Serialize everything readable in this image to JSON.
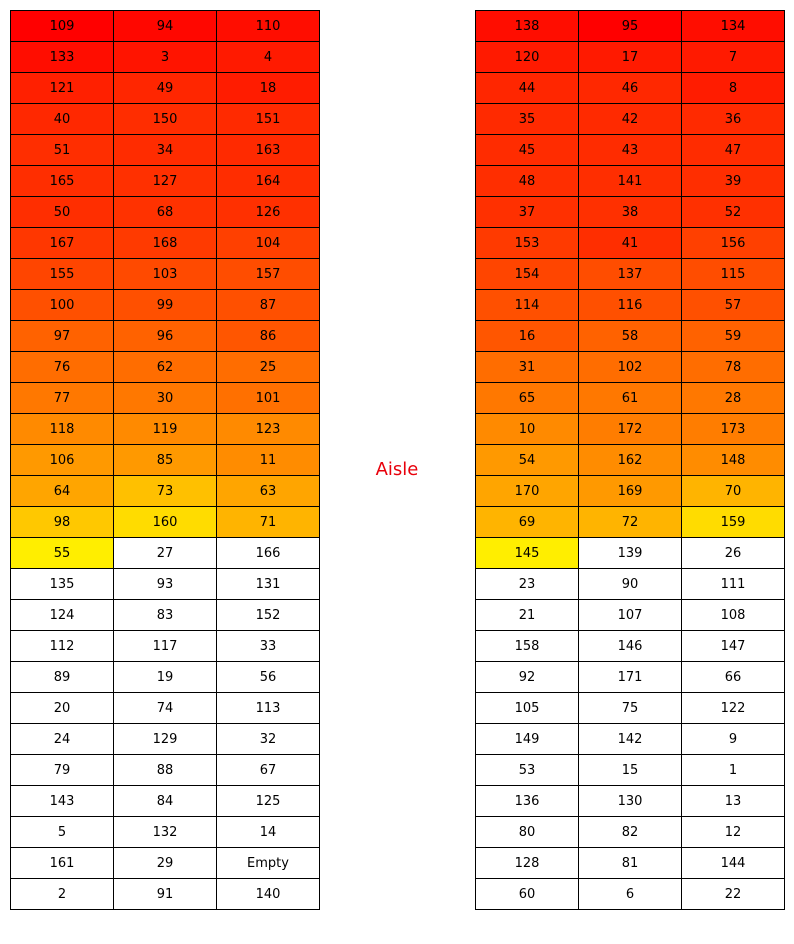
{
  "aisle_label": "Aisle",
  "colors": {
    "red": "#ff0000",
    "red_orange": "#ff2600",
    "orange_red": "#ff4500",
    "orange": "#ff6a00",
    "amber": "#ff8c00",
    "gold": "#ffb300",
    "yellow_gold": "#ffd900",
    "yellow": "#ffee00",
    "empty": "#ffffff",
    "aisle_text": "#e8000b"
  },
  "left_block": {
    "rows": [
      [
        {
          "v": "109",
          "c": "#ff0000"
        },
        {
          "v": "94",
          "c": "#ff0700"
        },
        {
          "v": "110",
          "c": "#ff0d00"
        }
      ],
      [
        {
          "v": "133",
          "c": "#ff0d00"
        },
        {
          "v": "3",
          "c": "#ff1400"
        },
        {
          "v": "4",
          "c": "#ff1a00"
        }
      ],
      [
        {
          "v": "121",
          "c": "#ff2000"
        },
        {
          "v": "49",
          "c": "#ff2600"
        },
        {
          "v": "18",
          "c": "#ff1c00"
        }
      ],
      [
        {
          "v": "40",
          "c": "#ff2800"
        },
        {
          "v": "150",
          "c": "#ff2d00"
        },
        {
          "v": "151",
          "c": "#ff2a00"
        }
      ],
      [
        {
          "v": "51",
          "c": "#ff2e00"
        },
        {
          "v": "34",
          "c": "#ff2c00"
        },
        {
          "v": "163",
          "c": "#ff2a00"
        }
      ],
      [
        {
          "v": "165",
          "c": "#ff2e00"
        },
        {
          "v": "127",
          "c": "#ff3000"
        },
        {
          "v": "164",
          "c": "#ff2d00"
        }
      ],
      [
        {
          "v": "50",
          "c": "#ff2e00"
        },
        {
          "v": "68",
          "c": "#ff3200"
        },
        {
          "v": "126",
          "c": "#ff3000"
        }
      ],
      [
        {
          "v": "167",
          "c": "#ff3700"
        },
        {
          "v": "168",
          "c": "#ff3a00"
        },
        {
          "v": "104",
          "c": "#ff4000"
        }
      ],
      [
        {
          "v": "155",
          "c": "#ff4500"
        },
        {
          "v": "103",
          "c": "#ff4a00"
        },
        {
          "v": "157",
          "c": "#ff4d00"
        }
      ],
      [
        {
          "v": "100",
          "c": "#ff5000"
        },
        {
          "v": "99",
          "c": "#ff5000"
        },
        {
          "v": "87",
          "c": "#ff5000"
        }
      ],
      [
        {
          "v": "97",
          "c": "#ff6200"
        },
        {
          "v": "96",
          "c": "#ff6200"
        },
        {
          "v": "86",
          "c": "#ff5600"
        }
      ],
      [
        {
          "v": "76",
          "c": "#ff6d00"
        },
        {
          "v": "62",
          "c": "#ff6d00"
        },
        {
          "v": "25",
          "c": "#ff6d00"
        }
      ],
      [
        {
          "v": "77",
          "c": "#ff7800"
        },
        {
          "v": "30",
          "c": "#ff7800"
        },
        {
          "v": "101",
          "c": "#ff7000"
        }
      ],
      [
        {
          "v": "118",
          "c": "#ff8a00"
        },
        {
          "v": "119",
          "c": "#ff8a00"
        },
        {
          "v": "123",
          "c": "#ff8a00"
        }
      ],
      [
        {
          "v": "106",
          "c": "#ff9900"
        },
        {
          "v": "85",
          "c": "#ff9900"
        },
        {
          "v": "11",
          "c": "#ff8c00"
        }
      ],
      [
        {
          "v": "64",
          "c": "#ffa500"
        },
        {
          "v": "73",
          "c": "#ffc000"
        },
        {
          "v": "63",
          "c": "#ffa500"
        }
      ],
      [
        {
          "v": "98",
          "c": "#ffc800"
        },
        {
          "v": "160",
          "c": "#ffdc00"
        },
        {
          "v": "71",
          "c": "#ffb400"
        }
      ],
      [
        {
          "v": "55",
          "c": "#ffee00"
        },
        {
          "v": "27",
          "c": "#ffffff"
        },
        {
          "v": "166",
          "c": "#ffffff"
        }
      ],
      [
        {
          "v": "135",
          "c": "#ffffff"
        },
        {
          "v": "93",
          "c": "#ffffff"
        },
        {
          "v": "131",
          "c": "#ffffff"
        }
      ],
      [
        {
          "v": "124",
          "c": "#ffffff"
        },
        {
          "v": "83",
          "c": "#ffffff"
        },
        {
          "v": "152",
          "c": "#ffffff"
        }
      ],
      [
        {
          "v": "112",
          "c": "#ffffff"
        },
        {
          "v": "117",
          "c": "#ffffff"
        },
        {
          "v": "33",
          "c": "#ffffff"
        }
      ],
      [
        {
          "v": "89",
          "c": "#ffffff"
        },
        {
          "v": "19",
          "c": "#ffffff"
        },
        {
          "v": "56",
          "c": "#ffffff"
        }
      ],
      [
        {
          "v": "20",
          "c": "#ffffff"
        },
        {
          "v": "74",
          "c": "#ffffff"
        },
        {
          "v": "113",
          "c": "#ffffff"
        }
      ],
      [
        {
          "v": "24",
          "c": "#ffffff"
        },
        {
          "v": "129",
          "c": "#ffffff"
        },
        {
          "v": "32",
          "c": "#ffffff"
        }
      ],
      [
        {
          "v": "79",
          "c": "#ffffff"
        },
        {
          "v": "88",
          "c": "#ffffff"
        },
        {
          "v": "67",
          "c": "#ffffff"
        }
      ],
      [
        {
          "v": "143",
          "c": "#ffffff"
        },
        {
          "v": "84",
          "c": "#ffffff"
        },
        {
          "v": "125",
          "c": "#ffffff"
        }
      ],
      [
        {
          "v": "5",
          "c": "#ffffff"
        },
        {
          "v": "132",
          "c": "#ffffff"
        },
        {
          "v": "14",
          "c": "#ffffff"
        }
      ],
      [
        {
          "v": "161",
          "c": "#ffffff"
        },
        {
          "v": "29",
          "c": "#ffffff"
        },
        {
          "v": "Empty",
          "c": "#ffffff"
        }
      ],
      [
        {
          "v": "2",
          "c": "#ffffff"
        },
        {
          "v": "91",
          "c": "#ffffff"
        },
        {
          "v": "140",
          "c": "#ffffff"
        }
      ]
    ]
  },
  "right_block": {
    "rows": [
      [
        {
          "v": "138",
          "c": "#ff0d00"
        },
        {
          "v": "95",
          "c": "#ff0000"
        },
        {
          "v": "134",
          "c": "#ff0d00"
        }
      ],
      [
        {
          "v": "120",
          "c": "#ff1a00"
        },
        {
          "v": "17",
          "c": "#ff1a00"
        },
        {
          "v": "7",
          "c": "#ff1a00"
        }
      ],
      [
        {
          "v": "44",
          "c": "#ff2600"
        },
        {
          "v": "46",
          "c": "#ff2800"
        },
        {
          "v": "8",
          "c": "#ff1c00"
        }
      ],
      [
        {
          "v": "35",
          "c": "#ff2a00"
        },
        {
          "v": "42",
          "c": "#ff2a00"
        },
        {
          "v": "36",
          "c": "#ff2a00"
        }
      ],
      [
        {
          "v": "45",
          "c": "#ff2c00"
        },
        {
          "v": "43",
          "c": "#ff2c00"
        },
        {
          "v": "47",
          "c": "#ff2c00"
        }
      ],
      [
        {
          "v": "48",
          "c": "#ff2e00"
        },
        {
          "v": "141",
          "c": "#ff2e00"
        },
        {
          "v": "39",
          "c": "#ff2e00"
        }
      ],
      [
        {
          "v": "37",
          "c": "#ff3000"
        },
        {
          "v": "38",
          "c": "#ff3000"
        },
        {
          "v": "52",
          "c": "#ff3000"
        }
      ],
      [
        {
          "v": "153",
          "c": "#ff3a00"
        },
        {
          "v": "41",
          "c": "#ff2e00"
        },
        {
          "v": "156",
          "c": "#ff4000"
        }
      ],
      [
        {
          "v": "154",
          "c": "#ff4500"
        },
        {
          "v": "137",
          "c": "#ff4d00"
        },
        {
          "v": "115",
          "c": "#ff4d00"
        }
      ],
      [
        {
          "v": "114",
          "c": "#ff5000"
        },
        {
          "v": "116",
          "c": "#ff5000"
        },
        {
          "v": "57",
          "c": "#ff5000"
        }
      ],
      [
        {
          "v": "16",
          "c": "#ff5600"
        },
        {
          "v": "58",
          "c": "#ff6200"
        },
        {
          "v": "59",
          "c": "#ff6200"
        }
      ],
      [
        {
          "v": "31",
          "c": "#ff6d00"
        },
        {
          "v": "102",
          "c": "#ff6d00"
        },
        {
          "v": "78",
          "c": "#ff6d00"
        }
      ],
      [
        {
          "v": "65",
          "c": "#ff7800"
        },
        {
          "v": "61",
          "c": "#ff7800"
        },
        {
          "v": "28",
          "c": "#ff7800"
        }
      ],
      [
        {
          "v": "10",
          "c": "#ff8a00"
        },
        {
          "v": "172",
          "c": "#ff7d00"
        },
        {
          "v": "173",
          "c": "#ff7d00"
        }
      ],
      [
        {
          "v": "54",
          "c": "#ff9900"
        },
        {
          "v": "162",
          "c": "#ff8c00"
        },
        {
          "v": "148",
          "c": "#ff8c00"
        }
      ],
      [
        {
          "v": "170",
          "c": "#ffa500"
        },
        {
          "v": "169",
          "c": "#ff9900"
        },
        {
          "v": "70",
          "c": "#ffb400"
        }
      ],
      [
        {
          "v": "69",
          "c": "#ffb400"
        },
        {
          "v": "72",
          "c": "#ffb400"
        },
        {
          "v": "159",
          "c": "#ffdc00"
        }
      ],
      [
        {
          "v": "145",
          "c": "#ffee00"
        },
        {
          "v": "139",
          "c": "#ffffff"
        },
        {
          "v": "26",
          "c": "#ffffff"
        }
      ],
      [
        {
          "v": "23",
          "c": "#ffffff"
        },
        {
          "v": "90",
          "c": "#ffffff"
        },
        {
          "v": "111",
          "c": "#ffffff"
        }
      ],
      [
        {
          "v": "21",
          "c": "#ffffff"
        },
        {
          "v": "107",
          "c": "#ffffff"
        },
        {
          "v": "108",
          "c": "#ffffff"
        }
      ],
      [
        {
          "v": "158",
          "c": "#ffffff"
        },
        {
          "v": "146",
          "c": "#ffffff"
        },
        {
          "v": "147",
          "c": "#ffffff"
        }
      ],
      [
        {
          "v": "92",
          "c": "#ffffff"
        },
        {
          "v": "171",
          "c": "#ffffff"
        },
        {
          "v": "66",
          "c": "#ffffff"
        }
      ],
      [
        {
          "v": "105",
          "c": "#ffffff"
        },
        {
          "v": "75",
          "c": "#ffffff"
        },
        {
          "v": "122",
          "c": "#ffffff"
        }
      ],
      [
        {
          "v": "149",
          "c": "#ffffff"
        },
        {
          "v": "142",
          "c": "#ffffff"
        },
        {
          "v": "9",
          "c": "#ffffff"
        }
      ],
      [
        {
          "v": "53",
          "c": "#ffffff"
        },
        {
          "v": "15",
          "c": "#ffffff"
        },
        {
          "v": "1",
          "c": "#ffffff"
        }
      ],
      [
        {
          "v": "136",
          "c": "#ffffff"
        },
        {
          "v": "130",
          "c": "#ffffff"
        },
        {
          "v": "13",
          "c": "#ffffff"
        }
      ],
      [
        {
          "v": "80",
          "c": "#ffffff"
        },
        {
          "v": "82",
          "c": "#ffffff"
        },
        {
          "v": "12",
          "c": "#ffffff"
        }
      ],
      [
        {
          "v": "128",
          "c": "#ffffff"
        },
        {
          "v": "81",
          "c": "#ffffff"
        },
        {
          "v": "144",
          "c": "#ffffff"
        }
      ],
      [
        {
          "v": "60",
          "c": "#ffffff"
        },
        {
          "v": "6",
          "c": "#ffffff"
        },
        {
          "v": "22",
          "c": "#ffffff"
        }
      ]
    ]
  }
}
